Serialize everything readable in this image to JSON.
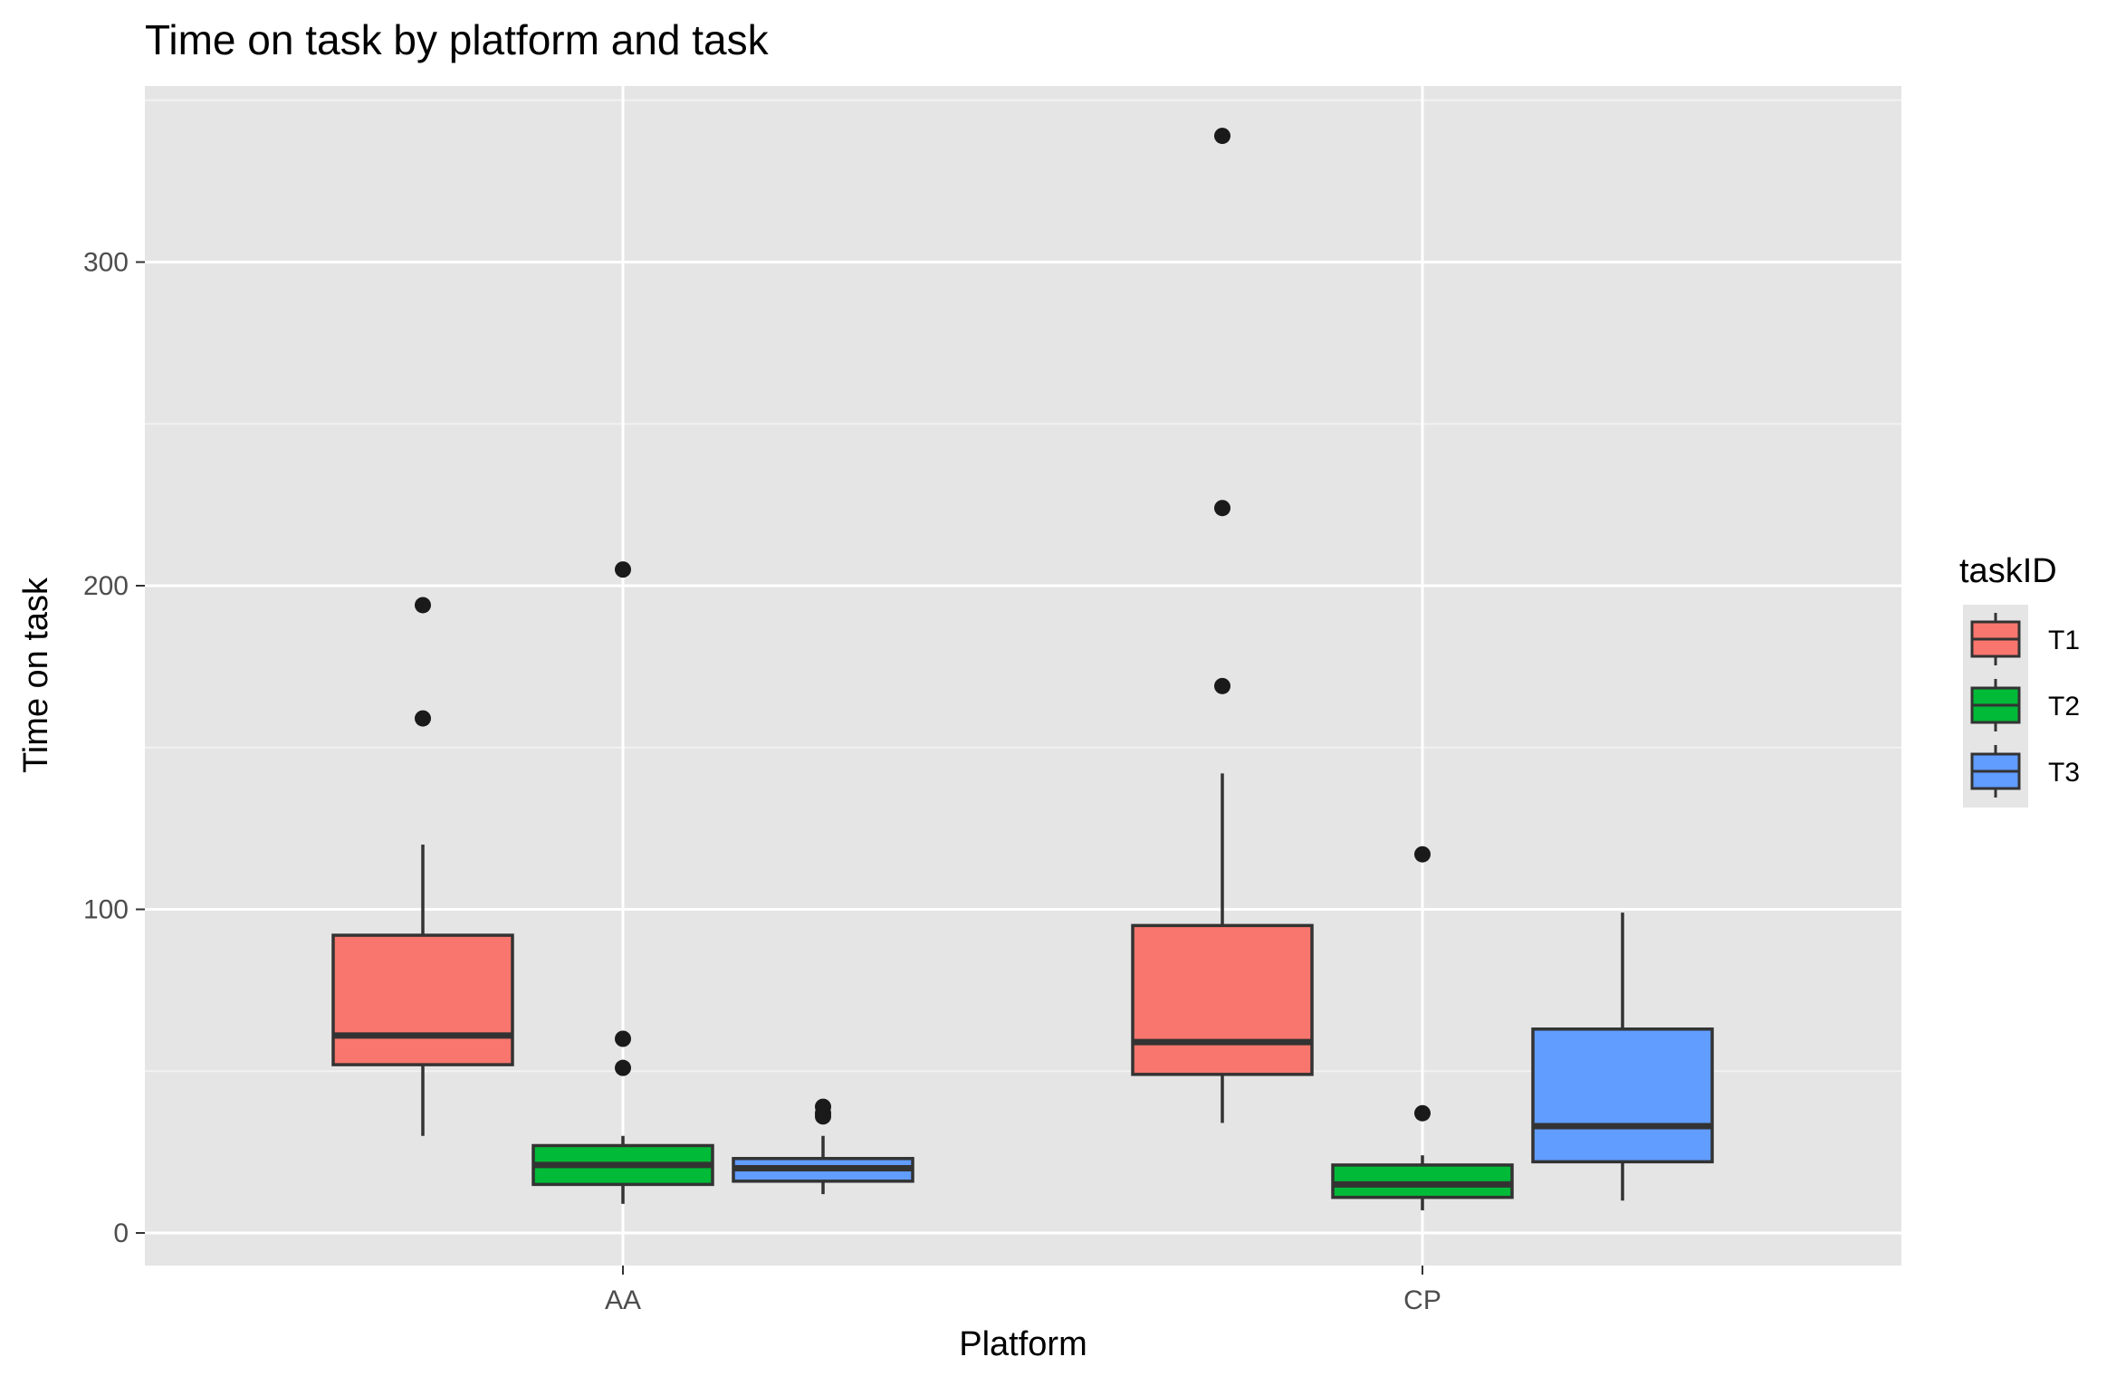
{
  "chart_data": {
    "type": "boxplot",
    "title": "Time on task by platform and task",
    "xlabel": "Platform",
    "ylabel": "Time on task",
    "categories": [
      "AA",
      "CP"
    ],
    "ylim": [
      -10,
      355
    ],
    "y_ticks": [
      0,
      100,
      200,
      300
    ],
    "y_tick_labels": [
      "0",
      "100",
      "200",
      "300"
    ],
    "grid": true,
    "legend": {
      "title": "taskID",
      "position": "right"
    },
    "series": [
      {
        "name": "T1",
        "color": "#F8766D",
        "boxes": [
          {
            "category": "AA",
            "lower_whisker": 30,
            "q1": 52,
            "median": 61,
            "q3": 92,
            "upper_whisker": 120,
            "outliers": [
              159,
              194
            ]
          },
          {
            "category": "CP",
            "lower_whisker": 34,
            "q1": 49,
            "median": 59,
            "q3": 95,
            "upper_whisker": 142,
            "outliers": [
              169,
              224,
              339
            ]
          }
        ]
      },
      {
        "name": "T2",
        "color": "#00BA38",
        "boxes": [
          {
            "category": "AA",
            "lower_whisker": 9,
            "q1": 15,
            "median": 21,
            "q3": 27,
            "upper_whisker": 30,
            "outliers": [
              51,
              60,
              205
            ]
          },
          {
            "category": "CP",
            "lower_whisker": 7,
            "q1": 11,
            "median": 15,
            "q3": 21,
            "upper_whisker": 24,
            "outliers": [
              37,
              117
            ]
          }
        ]
      },
      {
        "name": "T3",
        "color": "#619CFF",
        "boxes": [
          {
            "category": "AA",
            "lower_whisker": 12,
            "q1": 16,
            "median": 20,
            "q3": 23,
            "upper_whisker": 30,
            "outliers": [
              36,
              37,
              39
            ]
          },
          {
            "category": "CP",
            "lower_whisker": 10,
            "q1": 22,
            "median": 33,
            "q3": 63,
            "upper_whisker": 99,
            "outliers": []
          }
        ]
      }
    ]
  }
}
